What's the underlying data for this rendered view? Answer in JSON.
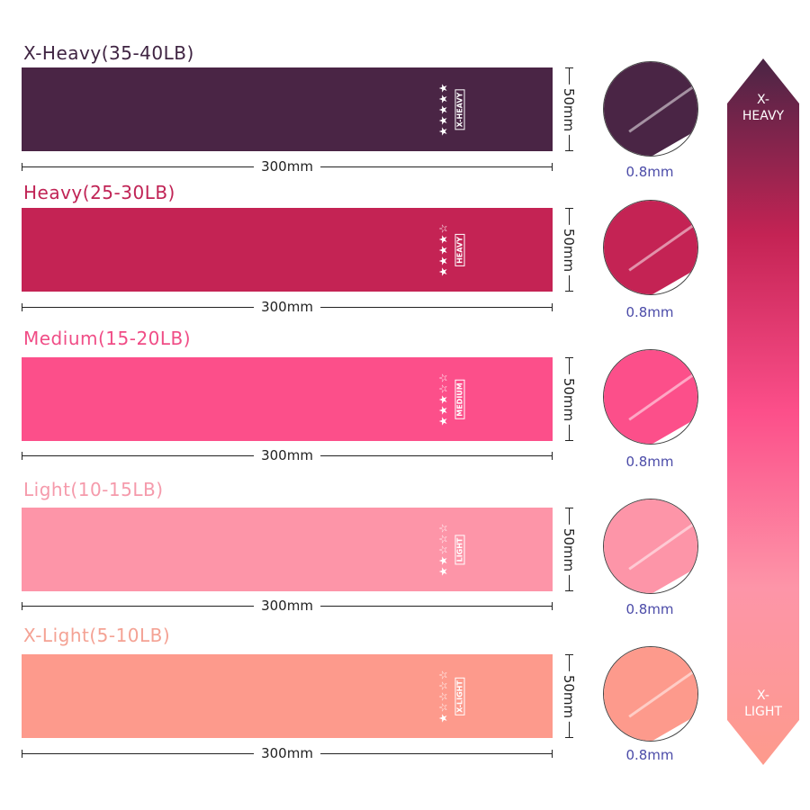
{
  "bands": [
    {
      "title": "X-Heavy(35-40LB)",
      "title_color": "#3f2442",
      "color": "#4a2545",
      "stars_filled": 5,
      "tag": "X-HEAVY",
      "length": "300mm",
      "width": "50mm",
      "thickness": "0.8mm"
    },
    {
      "title": "Heavy(25-30LB)",
      "title_color": "#c02355",
      "color": "#c42354",
      "stars_filled": 4,
      "tag": "HEAVY",
      "length": "300mm",
      "width": "50mm",
      "thickness": "0.8mm"
    },
    {
      "title": "Medium(15-20LB)",
      "title_color": "#f04d86",
      "color": "#fc4f8a",
      "stars_filled": 3,
      "tag": "MEDIUM",
      "length": "300mm",
      "width": "50mm",
      "thickness": "0.8mm"
    },
    {
      "title": "Light(10-15LB)",
      "title_color": "#f59aab",
      "color": "#fd95a8",
      "stars_filled": 2,
      "tag": "LIGHT",
      "length": "300mm",
      "width": "50mm",
      "thickness": "0.8mm"
    },
    {
      "title": "X-Light(5-10LB)",
      "title_color": "#f4a294",
      "color": "#fd9a8c",
      "stars_filled": 1,
      "tag": "X-LIGHT",
      "length": "300mm",
      "width": "50mm",
      "thickness": "0.8mm"
    }
  ],
  "scale": {
    "top_label_1": "X-",
    "top_label_2": "HEAVY",
    "bottom_label_1": "X-",
    "bottom_label_2": "LIGHT"
  }
}
